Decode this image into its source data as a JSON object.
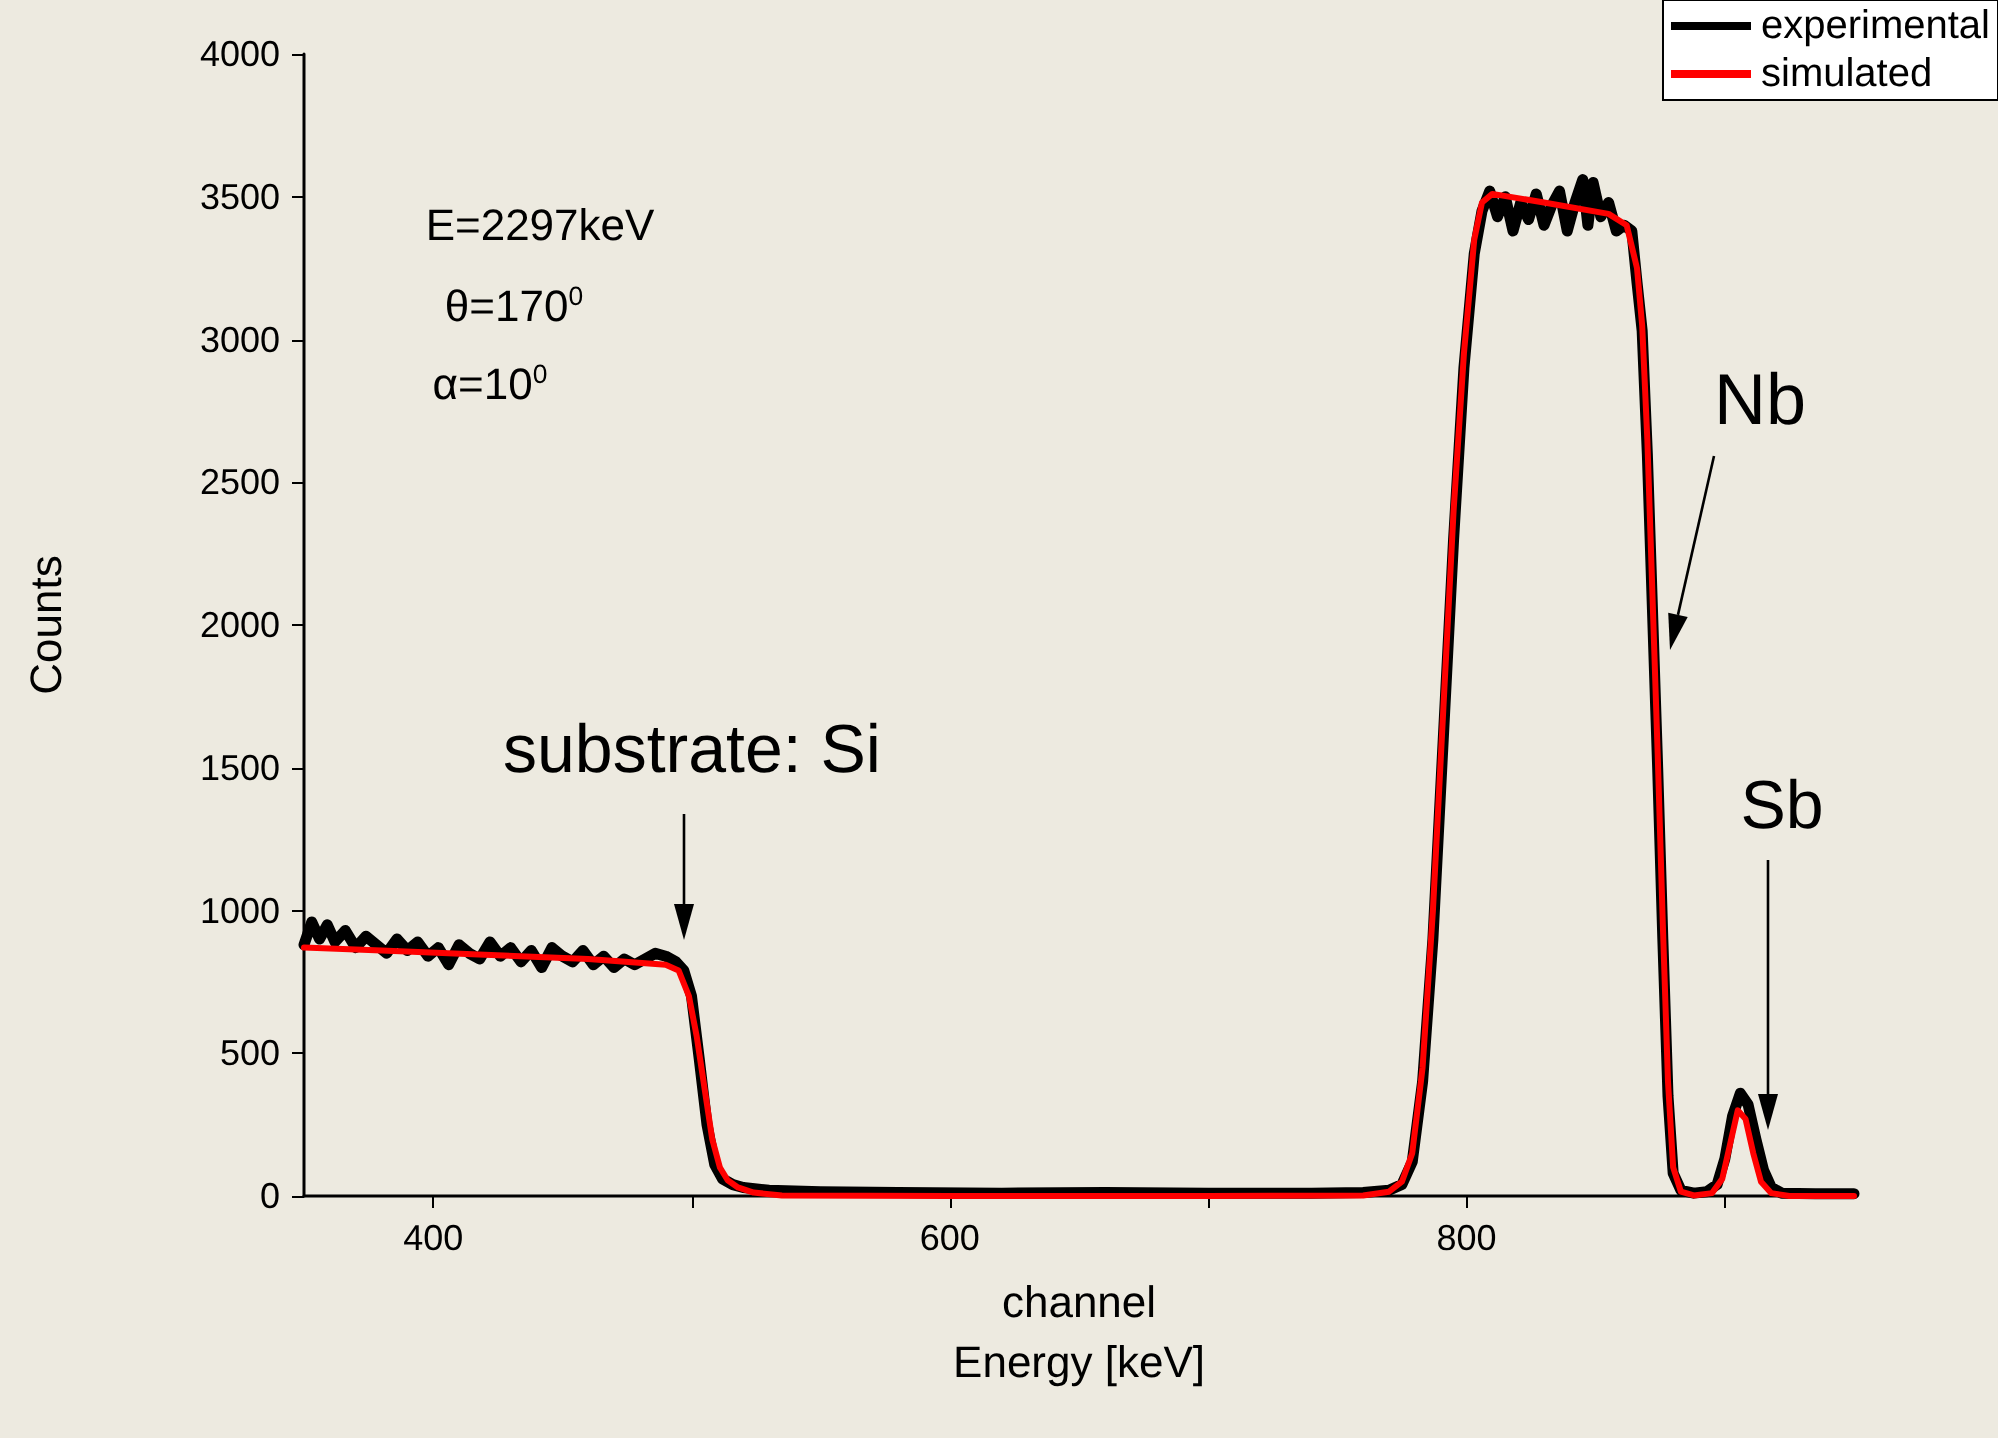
{
  "chart_data": {
    "type": "line",
    "xlabel": "channel\nEnergy [keV]",
    "ylabel": "Counts",
    "xlim": [
      350,
      950
    ],
    "xticks": [
      {
        "value": 400,
        "label": "400"
      },
      {
        "value": 500,
        "label": null
      },
      {
        "value": 600,
        "label": "600"
      },
      {
        "value": 700,
        "label": null
      },
      {
        "value": 800,
        "label": "800"
      },
      {
        "value": 900,
        "label": null
      }
    ],
    "ylim": [
      0,
      4000
    ],
    "yticks": [
      0,
      500,
      1000,
      1500,
      2000,
      2500,
      3000,
      3500,
      4000
    ],
    "grid": false,
    "legend": "top right",
    "marker": "none",
    "line_style": "solid",
    "annotations": [
      "E=2297keV",
      "θ=170$^{0}$",
      "α=10$^{0}$",
      "substrate: Si",
      "Nb",
      "Sb"
    ],
    "series": [
      {
        "name": "experimental",
        "color": "#000000",
        "x": [
          350,
          353,
          356,
          359,
          362,
          366,
          370,
          374,
          378,
          382,
          386,
          390,
          394,
          398,
          402,
          406,
          410,
          414,
          418,
          422,
          426,
          430,
          434,
          438,
          442,
          446,
          450,
          454,
          458,
          462,
          466,
          470,
          474,
          478,
          482,
          486,
          490,
          494,
          497,
          500,
          503,
          506,
          509,
          512,
          516,
          520,
          530,
          550,
          580,
          620,
          660,
          700,
          740,
          760,
          770,
          775,
          779,
          783,
          787,
          791,
          795,
          799,
          803,
          806,
          809,
          812,
          815,
          818,
          821,
          824,
          827,
          830,
          833,
          836,
          839,
          842,
          845,
          847,
          849,
          852,
          855,
          858,
          861,
          864,
          866,
          868,
          870,
          872,
          874,
          876,
          878,
          880,
          883,
          888,
          893,
          897,
          900,
          903,
          906,
          909,
          912,
          915,
          918,
          922,
          935,
          950
        ],
        "values": [
          880,
          960,
          900,
          950,
          890,
          930,
          870,
          910,
          880,
          850,
          900,
          860,
          890,
          840,
          870,
          810,
          880,
          850,
          830,
          890,
          840,
          870,
          820,
          860,
          800,
          870,
          840,
          820,
          860,
          810,
          840,
          800,
          830,
          810,
          830,
          850,
          840,
          820,
          790,
          700,
          480,
          250,
          110,
          60,
          40,
          30,
          20,
          15,
          12,
          10,
          12,
          10,
          10,
          12,
          20,
          40,
          120,
          400,
          900,
          1600,
          2300,
          2900,
          3300,
          3450,
          3520,
          3430,
          3500,
          3380,
          3480,
          3420,
          3510,
          3400,
          3470,
          3520,
          3380,
          3480,
          3560,
          3400,
          3550,
          3430,
          3480,
          3380,
          3400,
          3380,
          3200,
          3030,
          2600,
          2050,
          1500,
          900,
          350,
          80,
          20,
          10,
          15,
          40,
          130,
          280,
          360,
          320,
          200,
          90,
          30,
          10,
          8,
          8
        ]
      },
      {
        "name": "simulated",
        "color": "#ff0000",
        "x": [
          350,
          380,
          420,
          460,
          490,
          495,
          499,
          502,
          505,
          508,
          511,
          514,
          518,
          524,
          535,
          600,
          700,
          760,
          770,
          775,
          779,
          783,
          787,
          791,
          795,
          799,
          803,
          806,
          810,
          830,
          855,
          862,
          866,
          868,
          870,
          872,
          874,
          876,
          878,
          880,
          883,
          888,
          895,
          899,
          902,
          905,
          908,
          911,
          914,
          918,
          925,
          950
        ],
        "values": [
          870,
          860,
          845,
          830,
          810,
          790,
          700,
          560,
          380,
          200,
          100,
          55,
          30,
          12,
          2,
          0,
          0,
          2,
          15,
          50,
          150,
          450,
          1000,
          1700,
          2400,
          2950,
          3350,
          3480,
          3510,
          3480,
          3440,
          3400,
          3250,
          3050,
          2650,
          2100,
          1550,
          950,
          400,
          100,
          15,
          2,
          10,
          60,
          180,
          300,
          270,
          150,
          50,
          10,
          0,
          0
        ]
      }
    ]
  }
}
